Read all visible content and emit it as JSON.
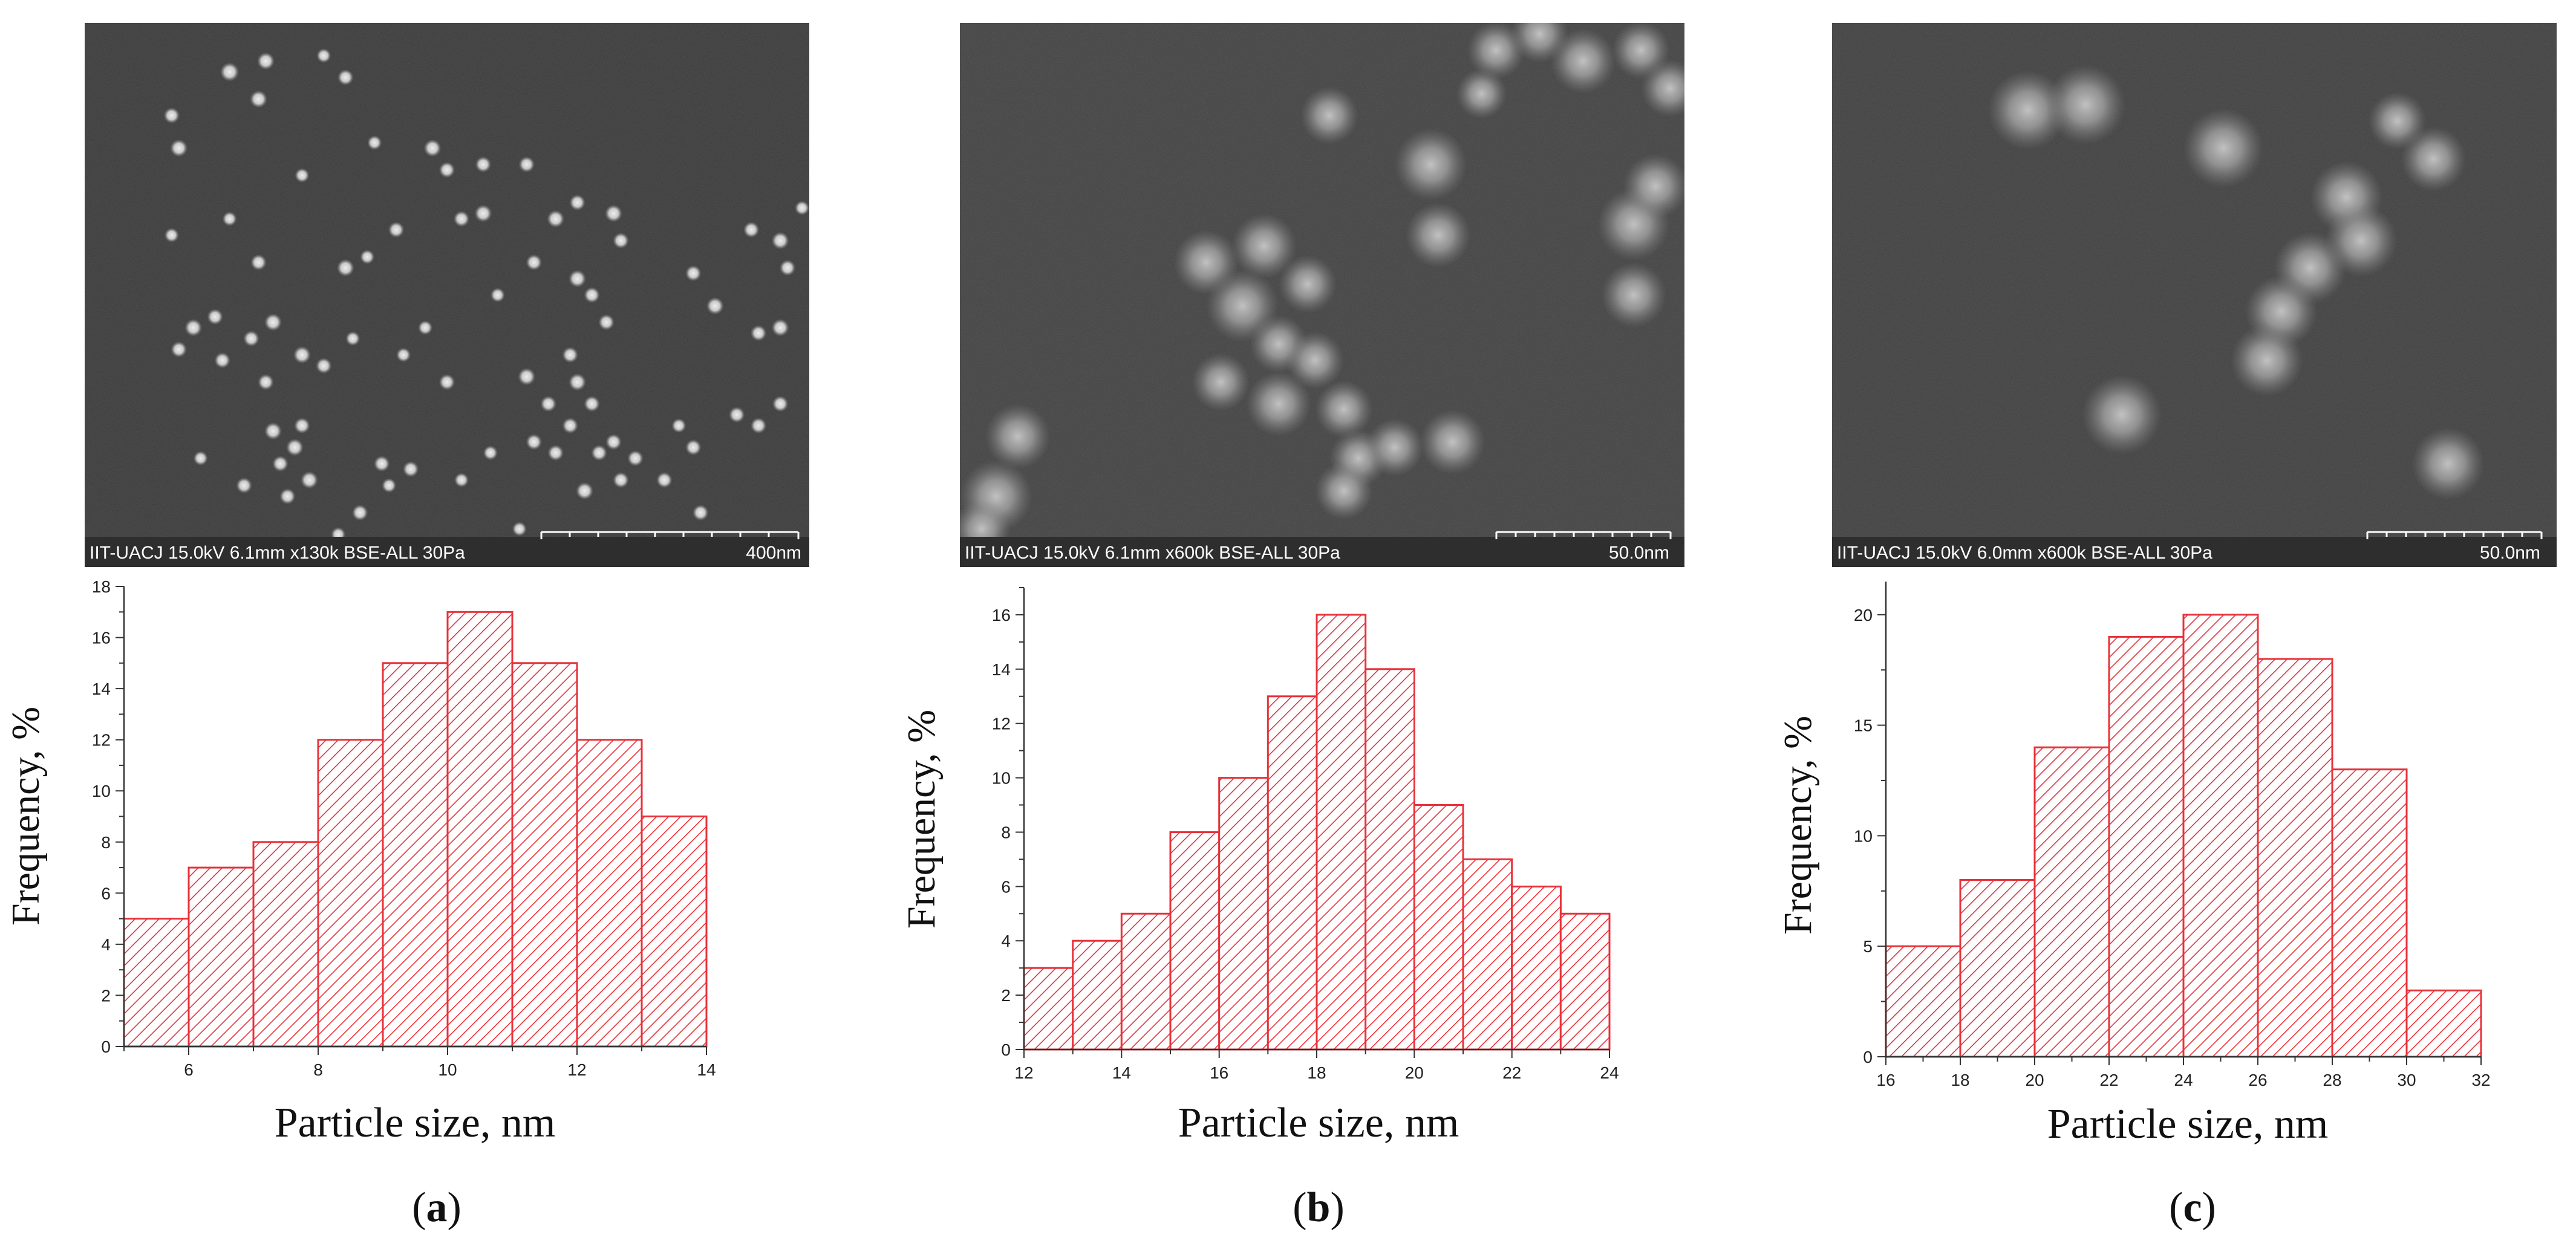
{
  "figure": {
    "panels": [
      {
        "letter": "a",
        "sem": {
          "info": "IIT-UACJ 15.0kV 6.1mm x130k BSE-ALL 30Pa",
          "scale_label": "400nm",
          "particles": [
            [
              0.25,
              0.07,
              0.012
            ],
            [
              0.2,
              0.09,
              0.013
            ],
            [
              0.24,
              0.14,
              0.012
            ],
            [
              0.12,
              0.17,
              0.011
            ],
            [
              0.13,
              0.23,
              0.012
            ],
            [
              0.33,
              0.06,
              0.01
            ],
            [
              0.36,
              0.1,
              0.011
            ],
            [
              0.48,
              0.23,
              0.012
            ],
            [
              0.5,
              0.27,
              0.011
            ],
            [
              0.55,
              0.26,
              0.011
            ],
            [
              0.61,
              0.26,
              0.011
            ],
            [
              0.55,
              0.35,
              0.012
            ],
            [
              0.52,
              0.36,
              0.011
            ],
            [
              0.43,
              0.38,
              0.011
            ],
            [
              0.3,
              0.28,
              0.01
            ],
            [
              0.2,
              0.36,
              0.01
            ],
            [
              0.24,
              0.44,
              0.011
            ],
            [
              0.36,
              0.45,
              0.012
            ],
            [
              0.39,
              0.43,
              0.01
            ],
            [
              0.65,
              0.36,
              0.012
            ],
            [
              0.68,
              0.33,
              0.011
            ],
            [
              0.73,
              0.35,
              0.012
            ],
            [
              0.74,
              0.4,
              0.011
            ],
            [
              0.62,
              0.44,
              0.011
            ],
            [
              0.68,
              0.47,
              0.012
            ],
            [
              0.7,
              0.5,
              0.011
            ],
            [
              0.72,
              0.55,
              0.011
            ],
            [
              0.84,
              0.46,
              0.011
            ],
            [
              0.87,
              0.52,
              0.012
            ],
            [
              0.92,
              0.38,
              0.011
            ],
            [
              0.96,
              0.4,
              0.012
            ],
            [
              0.97,
              0.45,
              0.011
            ],
            [
              0.99,
              0.34,
              0.01
            ],
            [
              0.15,
              0.56,
              0.012
            ],
            [
              0.18,
              0.54,
              0.011
            ],
            [
              0.13,
              0.6,
              0.011
            ],
            [
              0.19,
              0.62,
              0.011
            ],
            [
              0.23,
              0.58,
              0.011
            ],
            [
              0.26,
              0.55,
              0.012
            ],
            [
              0.25,
              0.66,
              0.011
            ],
            [
              0.3,
              0.61,
              0.012
            ],
            [
              0.33,
              0.63,
              0.011
            ],
            [
              0.37,
              0.58,
              0.01
            ],
            [
              0.44,
              0.61,
              0.01
            ],
            [
              0.5,
              0.66,
              0.011
            ],
            [
              0.61,
              0.65,
              0.012
            ],
            [
              0.67,
              0.61,
              0.011
            ],
            [
              0.68,
              0.66,
              0.012
            ],
            [
              0.7,
              0.7,
              0.011
            ],
            [
              0.64,
              0.7,
              0.011
            ],
            [
              0.93,
              0.57,
              0.011
            ],
            [
              0.96,
              0.56,
              0.012
            ],
            [
              0.26,
              0.75,
              0.012
            ],
            [
              0.29,
              0.78,
              0.012
            ],
            [
              0.3,
              0.74,
              0.011
            ],
            [
              0.27,
              0.81,
              0.011
            ],
            [
              0.31,
              0.84,
              0.012
            ],
            [
              0.22,
              0.85,
              0.011
            ],
            [
              0.16,
              0.8,
              0.01
            ],
            [
              0.42,
              0.85,
              0.01
            ],
            [
              0.38,
              0.9,
              0.011
            ],
            [
              0.41,
              0.81,
              0.011
            ],
            [
              0.45,
              0.82,
              0.011
            ],
            [
              0.52,
              0.84,
              0.01
            ],
            [
              0.56,
              0.79,
              0.01
            ],
            [
              0.62,
              0.77,
              0.011
            ],
            [
              0.65,
              0.79,
              0.011
            ],
            [
              0.67,
              0.74,
              0.011
            ],
            [
              0.71,
              0.79,
              0.011
            ],
            [
              0.73,
              0.77,
              0.011
            ],
            [
              0.69,
              0.86,
              0.012
            ],
            [
              0.74,
              0.84,
              0.011
            ],
            [
              0.76,
              0.8,
              0.011
            ],
            [
              0.8,
              0.84,
              0.011
            ],
            [
              0.84,
              0.78,
              0.011
            ],
            [
              0.82,
              0.74,
              0.01
            ],
            [
              0.9,
              0.72,
              0.011
            ],
            [
              0.93,
              0.74,
              0.011
            ],
            [
              0.96,
              0.7,
              0.011
            ],
            [
              0.35,
              0.94,
              0.01
            ],
            [
              0.6,
              0.93,
              0.01
            ],
            [
              0.28,
              0.87,
              0.011
            ],
            [
              0.57,
              0.5,
              0.01
            ],
            [
              0.47,
              0.56,
              0.01
            ],
            [
              0.12,
              0.39,
              0.01
            ],
            [
              0.4,
              0.22,
              0.01
            ],
            [
              0.85,
              0.9,
              0.011
            ]
          ]
        },
        "histogram": {
          "ylabel": "Frequency, %",
          "xlabel": "Particle size, nm"
        }
      },
      {
        "letter": "b",
        "sem": {
          "info": "IIT-UACJ 15.0kV 6.1mm x600k BSE-ALL 30Pa",
          "scale_label": "50.0nm",
          "particles": [
            [
              0.51,
              0.17,
              0.04
            ],
            [
              0.65,
              0.26,
              0.05
            ],
            [
              0.66,
              0.39,
              0.045
            ],
            [
              0.74,
              0.05,
              0.04
            ],
            [
              0.8,
              0.02,
              0.04
            ],
            [
              0.86,
              0.07,
              0.045
            ],
            [
              0.94,
              0.05,
              0.04
            ],
            [
              0.98,
              0.12,
              0.04
            ],
            [
              0.93,
              0.37,
              0.05
            ],
            [
              0.96,
              0.3,
              0.045
            ],
            [
              0.93,
              0.5,
              0.045
            ],
            [
              0.34,
              0.44,
              0.045
            ],
            [
              0.42,
              0.41,
              0.045
            ],
            [
              0.39,
              0.52,
              0.05
            ],
            [
              0.48,
              0.48,
              0.04
            ],
            [
              0.44,
              0.59,
              0.04
            ],
            [
              0.49,
              0.62,
              0.04
            ],
            [
              0.36,
              0.66,
              0.04
            ],
            [
              0.44,
              0.7,
              0.045
            ],
            [
              0.53,
              0.71,
              0.04
            ],
            [
              0.55,
              0.8,
              0.04
            ],
            [
              0.6,
              0.78,
              0.04
            ],
            [
              0.68,
              0.77,
              0.045
            ],
            [
              0.53,
              0.86,
              0.04
            ],
            [
              0.08,
              0.76,
              0.045
            ],
            [
              0.05,
              0.87,
              0.05
            ],
            [
              0.03,
              0.93,
              0.04
            ],
            [
              0.72,
              0.13,
              0.035
            ]
          ]
        },
        "histogram": {
          "ylabel": "Frequency, %",
          "xlabel": "Particle size, nm"
        }
      },
      {
        "letter": "c",
        "sem": {
          "info": "IIT-UACJ 15.0kV 6.0mm x600k BSE-ALL 30Pa",
          "scale_label": "50.0nm",
          "particles": [
            [
              0.27,
              0.16,
              0.055
            ],
            [
              0.35,
              0.15,
              0.055
            ],
            [
              0.54,
              0.23,
              0.055
            ],
            [
              0.71,
              0.32,
              0.05
            ],
            [
              0.73,
              0.4,
              0.05
            ],
            [
              0.66,
              0.45,
              0.05
            ],
            [
              0.62,
              0.53,
              0.05
            ],
            [
              0.6,
              0.62,
              0.05
            ],
            [
              0.4,
              0.72,
              0.055
            ],
            [
              0.83,
              0.25,
              0.045
            ],
            [
              0.78,
              0.18,
              0.04
            ],
            [
              0.85,
              0.81,
              0.05
            ]
          ]
        },
        "histogram": {
          "ylabel": "Frequency, %",
          "xlabel": "Particle size, nm"
        }
      }
    ]
  },
  "chart_data": [
    {
      "type": "bar",
      "xlabel": "Particle size, nm",
      "ylabel": "Frequency, %",
      "bins": [
        [
          5,
          6
        ],
        [
          6,
          7
        ],
        [
          7,
          8
        ],
        [
          8,
          9
        ],
        [
          9,
          10
        ],
        [
          10,
          11
        ],
        [
          11,
          12
        ],
        [
          12,
          13
        ],
        [
          13,
          14
        ]
      ],
      "values": [
        5,
        7,
        8,
        12,
        15,
        17,
        15,
        12,
        9
      ],
      "xlim": [
        5,
        14
      ],
      "ylim": [
        0,
        18
      ],
      "xticks": [
        6,
        8,
        10,
        12,
        14
      ],
      "yticks": [
        0,
        2,
        4,
        6,
        8,
        10,
        12,
        14,
        16,
        18
      ],
      "fill": "#e8313a"
    },
    {
      "type": "bar",
      "xlabel": "Particle size, nm",
      "ylabel": "Frequency, %",
      "bins": [
        [
          12,
          13
        ],
        [
          13,
          14
        ],
        [
          14,
          15
        ],
        [
          15,
          16
        ],
        [
          16,
          17
        ],
        [
          17,
          18
        ],
        [
          18,
          19
        ],
        [
          19,
          20
        ],
        [
          20,
          21
        ],
        [
          21,
          22
        ],
        [
          22,
          23
        ],
        [
          23,
          24
        ]
      ],
      "values": [
        3,
        4,
        5,
        8,
        10,
        13,
        16,
        14,
        9,
        7,
        6,
        5
      ],
      "xlim": [
        12,
        24
      ],
      "ylim": [
        0,
        17
      ],
      "xticks": [
        12,
        14,
        16,
        18,
        20,
        22,
        24
      ],
      "yticks": [
        0,
        2,
        4,
        6,
        8,
        10,
        12,
        14,
        16
      ],
      "fill": "#e8313a"
    },
    {
      "type": "bar",
      "xlabel": "Particle size, nm",
      "ylabel": "Frequency, %",
      "bins": [
        [
          16,
          18
        ],
        [
          18,
          20
        ],
        [
          20,
          22
        ],
        [
          22,
          24
        ],
        [
          24,
          26
        ],
        [
          26,
          28
        ],
        [
          28,
          30
        ],
        [
          30,
          32
        ]
      ],
      "values": [
        5,
        8,
        14,
        19,
        20,
        18,
        13,
        3
      ],
      "xlim": [
        16,
        32
      ],
      "ylim": [
        0,
        21.5
      ],
      "xticks": [
        16,
        18,
        20,
        22,
        24,
        26,
        28,
        30,
        32
      ],
      "yticks": [
        0,
        5,
        10,
        15,
        20
      ],
      "fill": "#e8313a"
    }
  ]
}
